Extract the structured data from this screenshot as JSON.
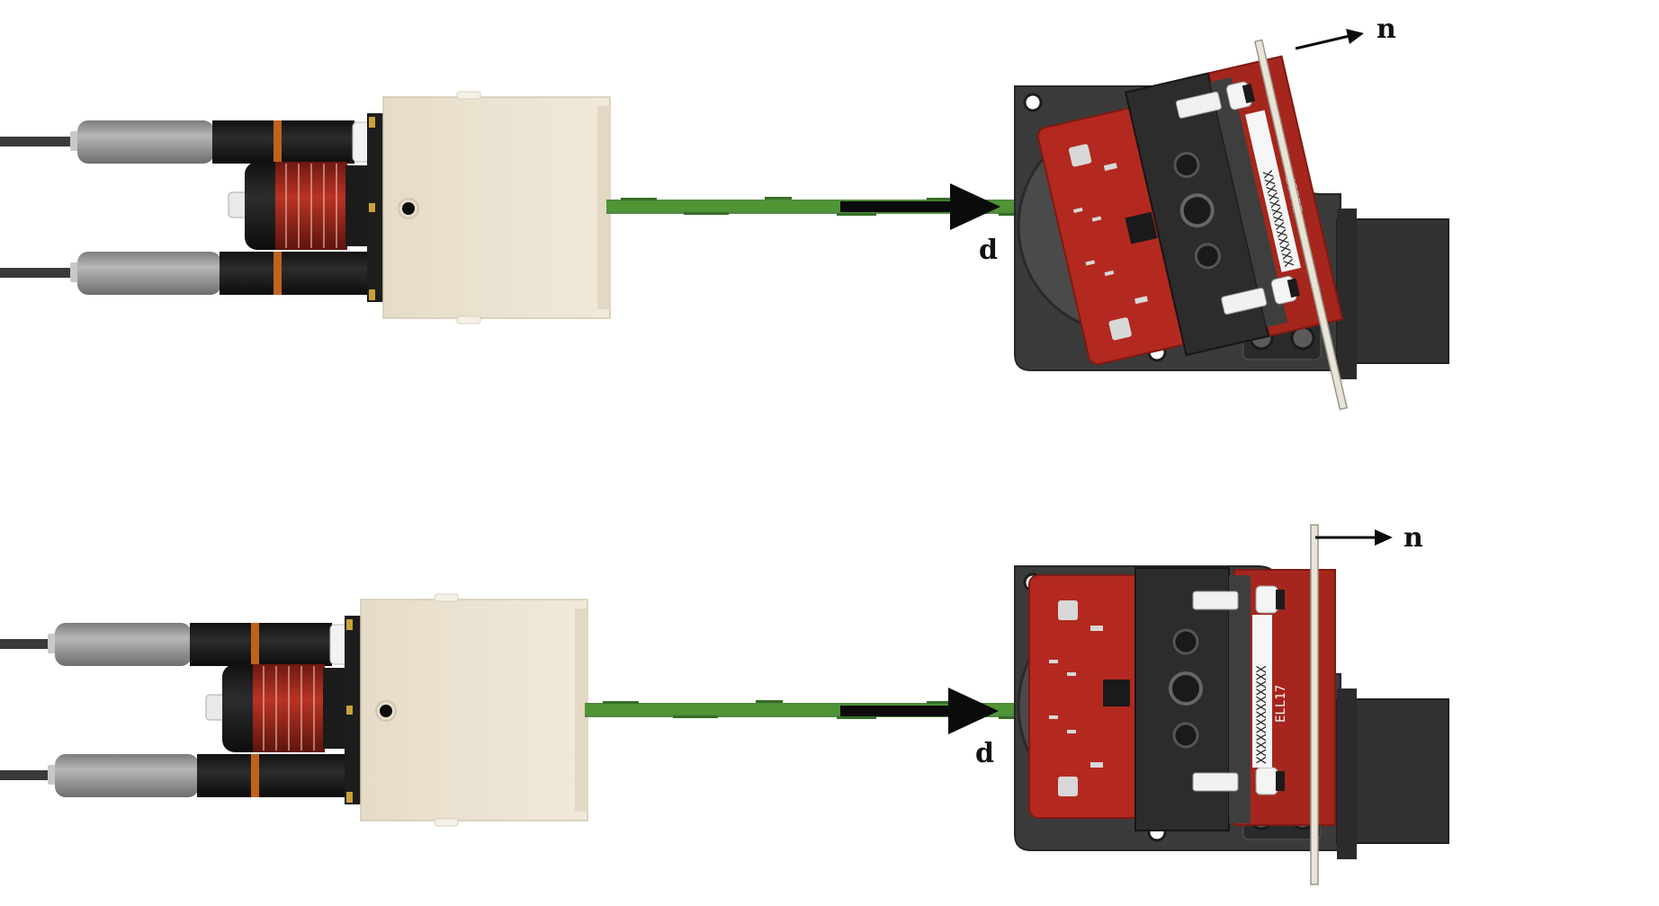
{
  "panels": [
    {
      "id": "top",
      "beam_label": "d",
      "normal_label": "n",
      "motor_label": "ELL17",
      "serial_label": "XXXXXXXXXXXXX"
    },
    {
      "id": "bottom",
      "beam_label": "d",
      "normal_label": "n",
      "motor_label": "ELL17",
      "serial_label": "XXXXXXXXXXXXX"
    }
  ],
  "colors": {
    "beam": "#3f7d2c",
    "housing": "#ece4d3",
    "pcb": "#b3291f",
    "mount_body": "#3d3d3d",
    "sensor_body": "#989898",
    "dial": "#a5281c"
  }
}
